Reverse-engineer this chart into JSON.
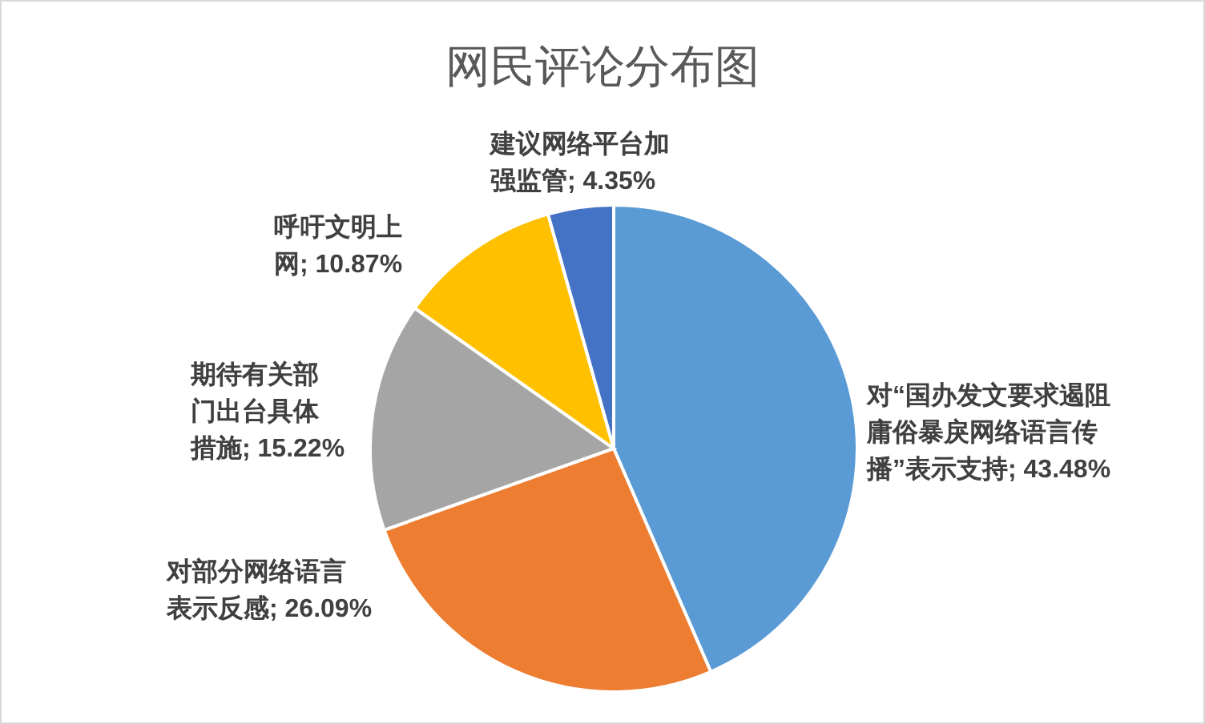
{
  "chart_data": {
    "type": "pie",
    "title": "网民评论分布图",
    "categories": [
      "对“国办发文要求遏阻庸俗暴戾网络语言传播”表示支持",
      "对部分网络语言表示反感",
      "期待有关部门出台具体措施",
      "呼吁文明上网",
      "建议网络平台加强监管"
    ],
    "values": [
      43.48,
      26.09,
      15.22,
      10.87,
      4.35
    ],
    "value_labels": [
      "; 43.48%",
      "; 26.09%",
      "; 15.22%",
      "; 10.87%",
      "; 4.35%"
    ],
    "colors": [
      "#5b9bd5",
      "#ed7d31",
      "#a5a5a5",
      "#ffc000",
      "#4472c4"
    ]
  }
}
